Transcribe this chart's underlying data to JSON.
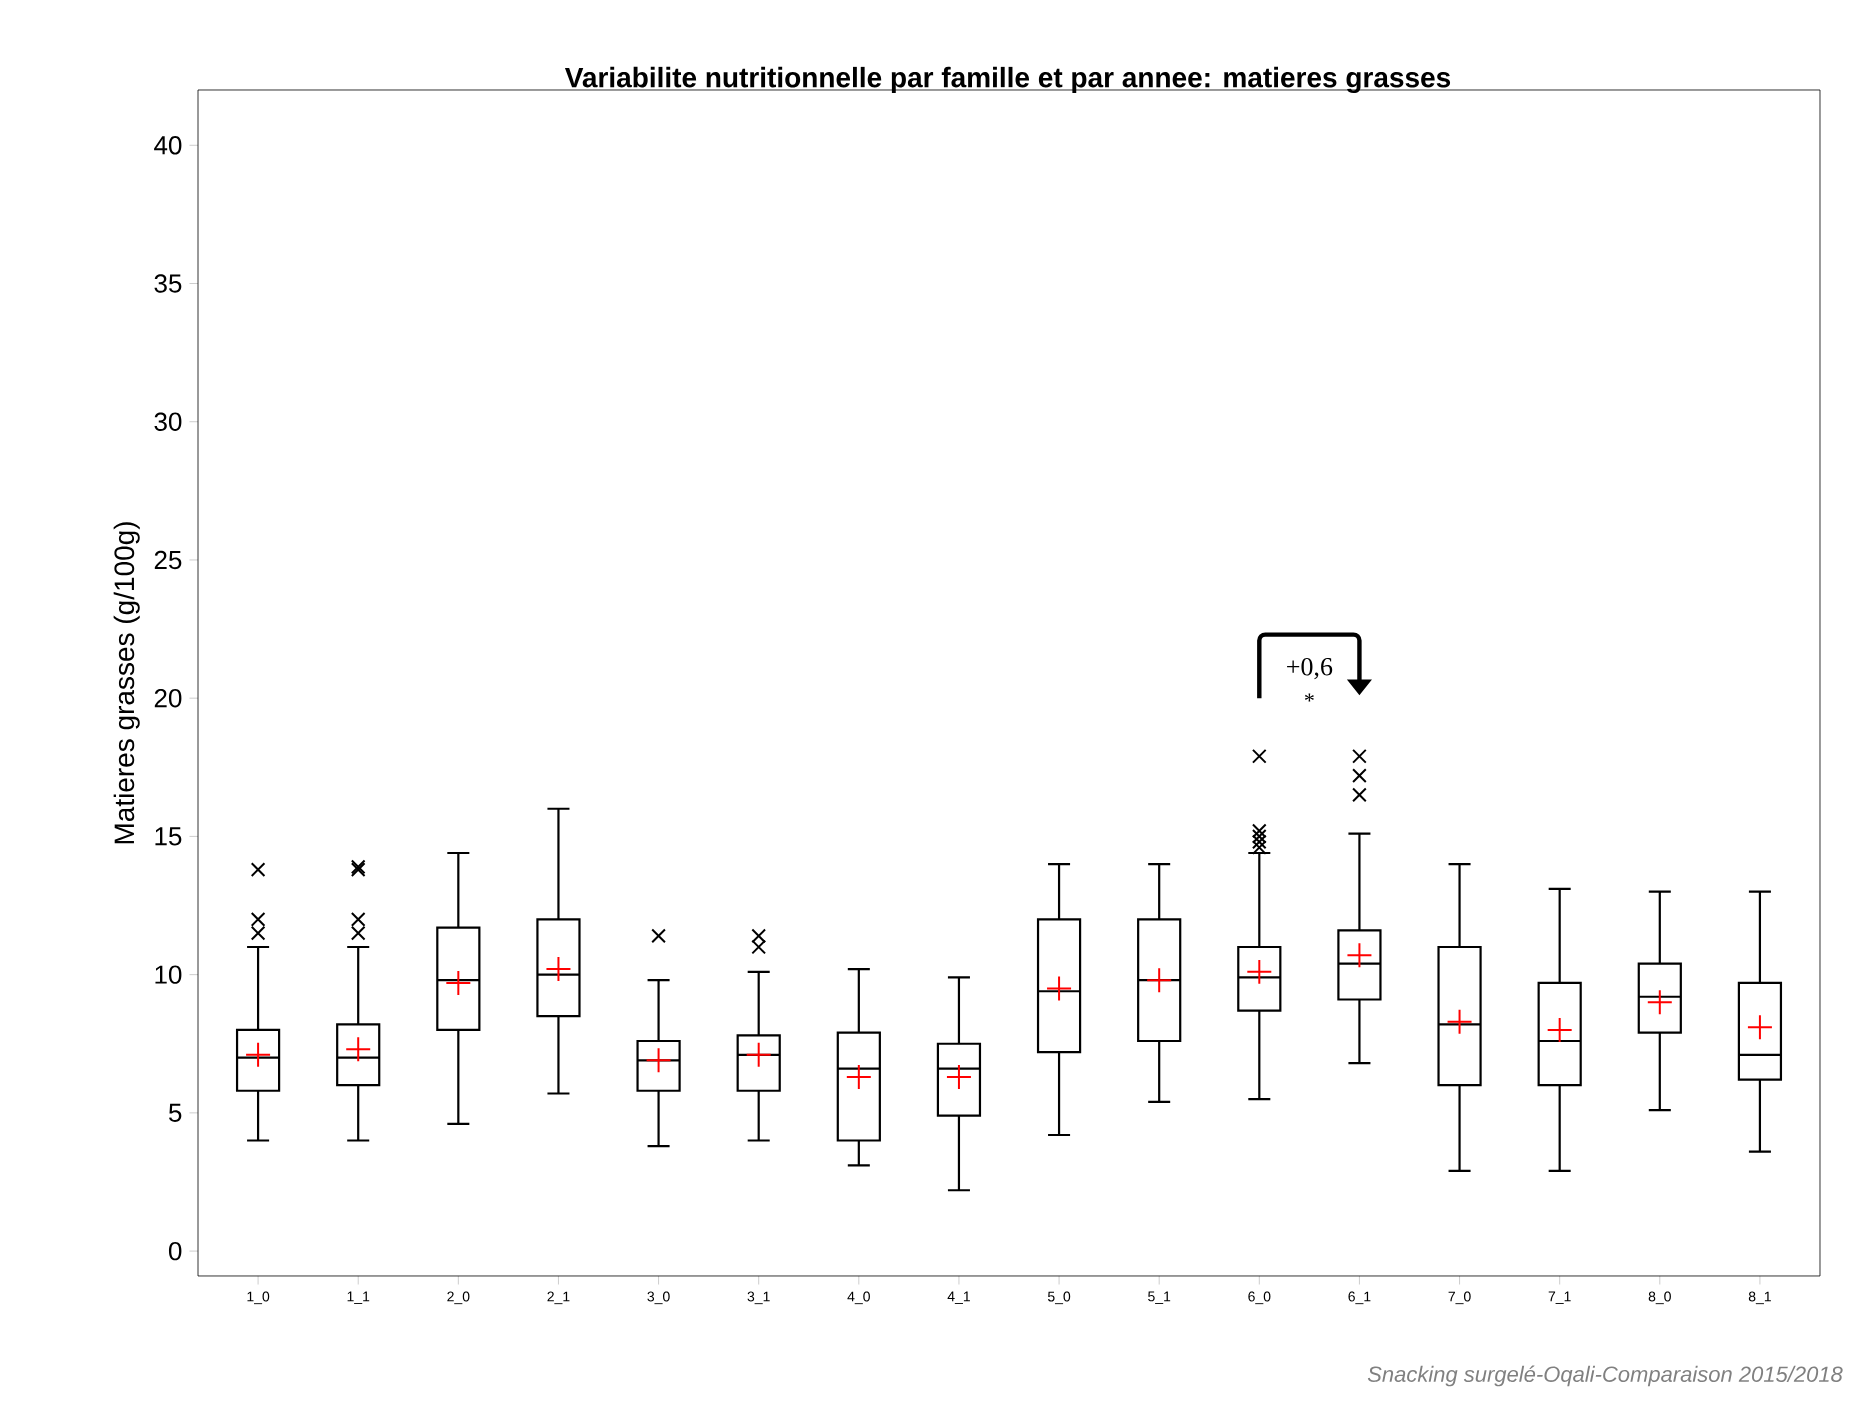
{
  "chart_data": {
    "type": "box",
    "title": "Variabilite nutritionnelle par famille et par annee: matieres grasses",
    "ylabel": "Matieres grasses (g/100g)",
    "categories": [
      "1_0",
      "1_1",
      "2_0",
      "2_1",
      "3_0",
      "3_1",
      "4_0",
      "4_1",
      "5_0",
      "5_1",
      "6_0",
      "6_1",
      "7_0",
      "7_1",
      "8_0",
      "8_1"
    ],
    "boxes": [
      {
        "low": 4,
        "q1": 5.8,
        "median": 7,
        "q3": 8,
        "high": 11,
        "mean": 7.1,
        "outliers": [
          11.5,
          12,
          13.8
        ]
      },
      {
        "low": 4,
        "q1": 6,
        "median": 7,
        "q3": 8.2,
        "high": 11,
        "mean": 7.3,
        "outliers": [
          11.5,
          12,
          13.8,
          13.9
        ]
      },
      {
        "low": 4.6,
        "q1": 8,
        "median": 9.8,
        "q3": 11.7,
        "high": 14.4,
        "mean": 9.7
      },
      {
        "low": 5.7,
        "q1": 8.5,
        "median": 10,
        "q3": 12,
        "high": 16,
        "mean": 10.2
      },
      {
        "low": 3.8,
        "q1": 5.8,
        "median": 6.9,
        "q3": 7.6,
        "high": 9.8,
        "mean": 6.9,
        "outliers": [
          11.4
        ]
      },
      {
        "low": 4,
        "q1": 5.8,
        "median": 7.1,
        "q3": 7.8,
        "high": 10.1,
        "mean": 7.1,
        "outliers": [
          11,
          11.4
        ]
      },
      {
        "low": 3.1,
        "q1": 4,
        "median": 6.6,
        "q3": 7.9,
        "high": 10.2,
        "mean": 6.3
      },
      {
        "low": 2.2,
        "q1": 4.9,
        "median": 6.6,
        "q3": 7.5,
        "high": 9.9,
        "mean": 6.3
      },
      {
        "low": 4.2,
        "q1": 7.2,
        "median": 9.4,
        "q3": 12,
        "high": 14,
        "mean": 9.5
      },
      {
        "low": 5.4,
        "q1": 7.6,
        "median": 9.8,
        "q3": 12,
        "high": 14,
        "mean": 9.8
      },
      {
        "low": 5.5,
        "q1": 8.7,
        "median": 9.9,
        "q3": 11,
        "high": 14.4,
        "mean": 10.1,
        "outliers": [
          14.6,
          14.8,
          15,
          15.2,
          17.9
        ]
      },
      {
        "low": 6.8,
        "q1": 9.1,
        "median": 10.4,
        "q3": 11.6,
        "high": 15.1,
        "mean": 10.7,
        "outliers": [
          16.5,
          17.2,
          17.9
        ]
      },
      {
        "low": 2.9,
        "q1": 6,
        "median": 8.2,
        "q3": 11,
        "high": 14,
        "mean": 8.3
      },
      {
        "low": 2.9,
        "q1": 6,
        "median": 7.6,
        "q3": 9.7,
        "high": 13.1,
        "mean": 8
      },
      {
        "low": 5.1,
        "q1": 7.9,
        "median": 9.2,
        "q3": 10.4,
        "high": 13,
        "mean": 9
      },
      {
        "low": 3.6,
        "q1": 6.2,
        "median": 7.1,
        "q3": 9.7,
        "high": 13,
        "mean": 8.1
      }
    ],
    "ylim": [
      -0.9,
      42
    ],
    "yticks": [
      0,
      5,
      10,
      15,
      20,
      25,
      30,
      35,
      40
    ],
    "annotations": [
      "+0,6",
      "*",
      "Snacking surgelé-Oqali-Comparaison 2015/2018"
    ]
  }
}
